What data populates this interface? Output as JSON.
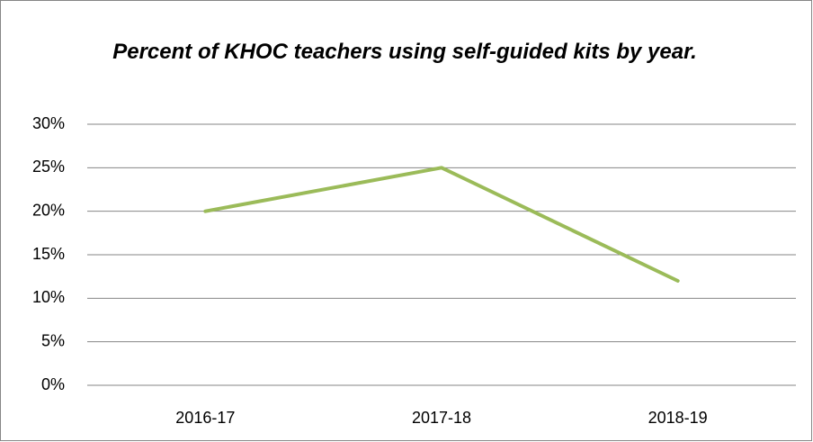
{
  "chart_data": {
    "type": "line",
    "title": "Percent of KHOC teachers using self-guided kits by year.",
    "categories": [
      "2016-17",
      "2017-18",
      "2018-19"
    ],
    "values": [
      20,
      25,
      12
    ],
    "color": "#9bbb59",
    "ylim": [
      0,
      30
    ],
    "yticks": [
      {
        "value": 0,
        "label": "0%"
      },
      {
        "value": 5,
        "label": "5%"
      },
      {
        "value": 10,
        "label": "10%"
      },
      {
        "value": 15,
        "label": "15%"
      },
      {
        "value": 20,
        "label": "20%"
      },
      {
        "value": 25,
        "label": "25%"
      },
      {
        "value": 30,
        "label": "30%"
      }
    ],
    "grid": true
  }
}
